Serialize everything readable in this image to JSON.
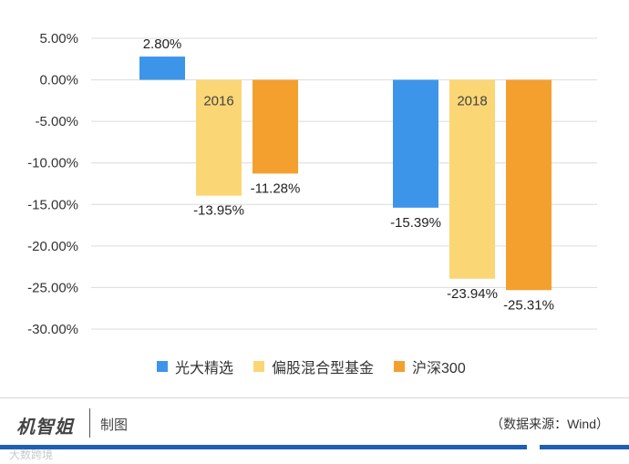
{
  "chart_data": {
    "type": "bar",
    "groups": [
      {
        "label": "2016",
        "values": [
          2.8,
          -13.95,
          -11.28
        ]
      },
      {
        "label": "2018",
        "values": [
          -15.39,
          -23.94,
          -25.31
        ]
      }
    ],
    "series": [
      {
        "name": "光大精选",
        "color": "#3d95ea"
      },
      {
        "name": "偏股混合型基金",
        "color": "#fbd675"
      },
      {
        "name": "沪深300",
        "color": "#f4a02e"
      }
    ],
    "data_labels": [
      [
        "2.80%",
        "-13.95%",
        "-11.28%"
      ],
      [
        "-15.39%",
        "-23.94%",
        "-25.31%"
      ]
    ],
    "ylim": [
      -30,
      5
    ],
    "yticks": [
      5,
      0,
      -5,
      -10,
      -15,
      -20,
      -25,
      -30
    ],
    "ytick_labels": [
      "5.00%",
      "0.00%",
      "-5.00%",
      "-10.00%",
      "-15.00%",
      "-20.00%",
      "-25.00%",
      "-30.00%"
    ],
    "grid": true,
    "legend_position": "bottom"
  },
  "footer": {
    "brand": "机智姐",
    "caption": "制图",
    "source": "（数据来源：Wind）",
    "watermark": "大数跨境"
  }
}
